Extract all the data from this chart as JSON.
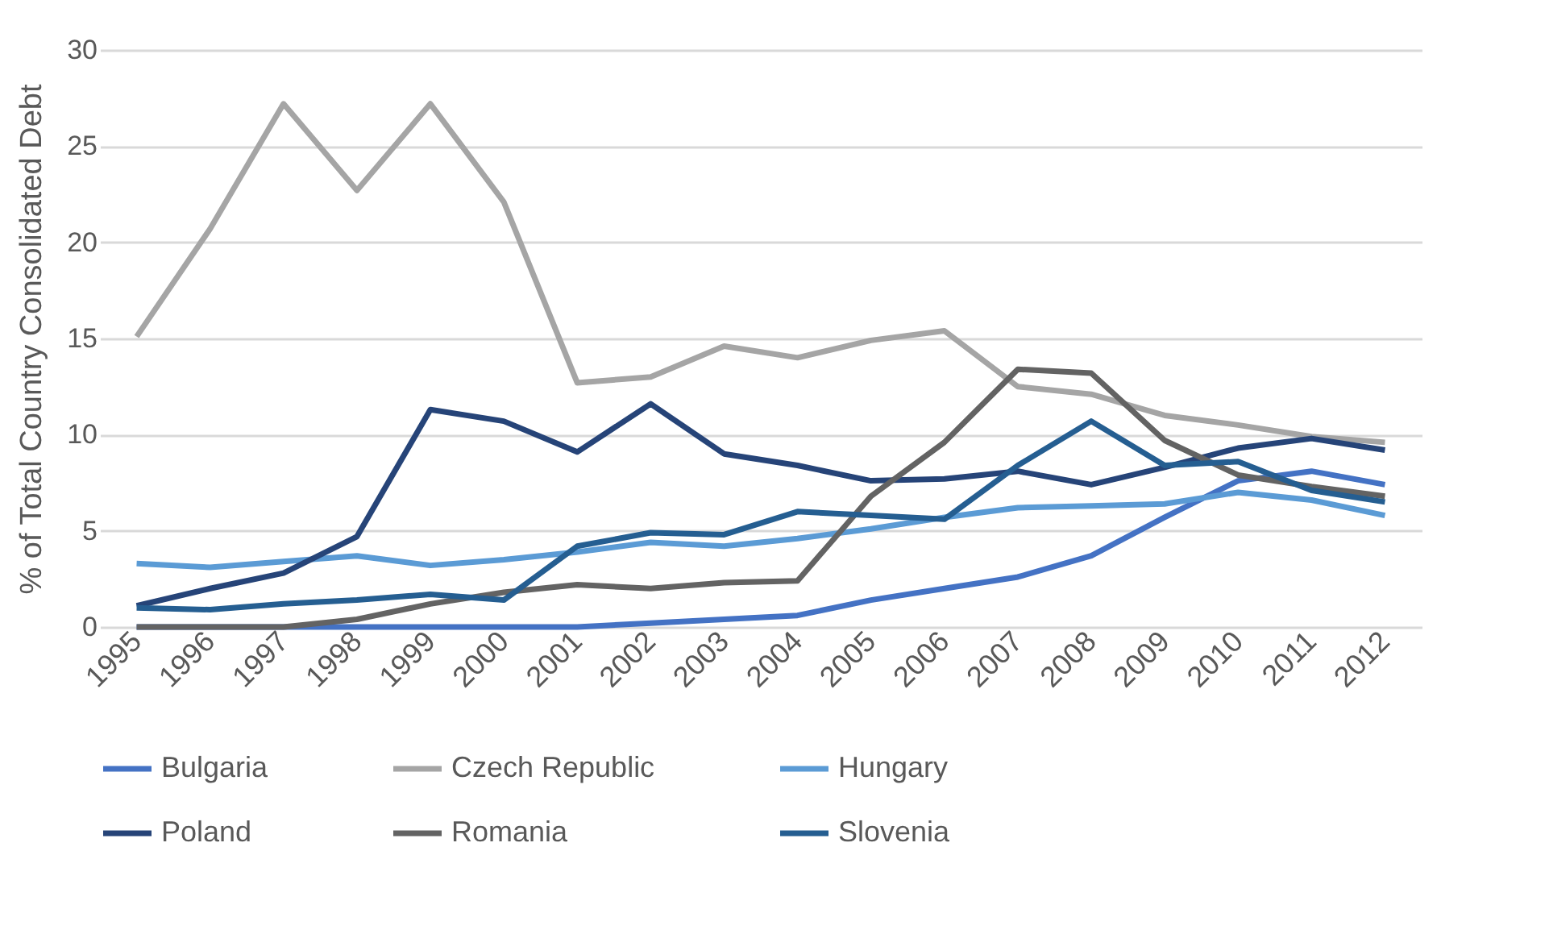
{
  "chart_data": {
    "type": "line",
    "ylabel": "% of Total Country Consolidated Debt",
    "categories": [
      "1995",
      "1996",
      "1997",
      "1998",
      "1999",
      "2000",
      "2001",
      "2002",
      "2003",
      "2004",
      "2005",
      "2006",
      "2007",
      "2008",
      "2009",
      "2010",
      "2011",
      "2012"
    ],
    "ylim": [
      0,
      30
    ],
    "yticks": [
      0,
      5,
      10,
      15,
      20,
      25,
      30
    ],
    "grid": "y",
    "legend": "bottom",
    "series": [
      {
        "name": "Bulgaria",
        "color": "#4472c4",
        "values": [
          0,
          0,
          0,
          0,
          0,
          0,
          0,
          0.2,
          0.4,
          0.6,
          1.4,
          2.0,
          2.6,
          3.7,
          5.7,
          7.6,
          8.1,
          7.4
        ]
      },
      {
        "name": "Czech Republic",
        "color": "#a5a5a5",
        "values": [
          15.1,
          20.7,
          27.2,
          22.7,
          27.2,
          22.1,
          12.7,
          13.0,
          14.6,
          14.0,
          14.9,
          15.4,
          12.5,
          12.1,
          11.0,
          10.5,
          9.9,
          9.6
        ]
      },
      {
        "name": "Hungary",
        "color": "#5b9bd5",
        "values": [
          3.3,
          3.1,
          3.4,
          3.7,
          3.2,
          3.5,
          3.9,
          4.4,
          4.2,
          4.6,
          5.1,
          5.7,
          6.2,
          6.3,
          6.4,
          7.0,
          6.6,
          5.8
        ]
      },
      {
        "name": "Poland",
        "color": "#264478",
        "values": [
          1.1,
          2.0,
          2.8,
          4.7,
          11.3,
          10.7,
          9.1,
          11.6,
          9.0,
          8.4,
          7.6,
          7.7,
          8.1,
          7.4,
          8.3,
          9.3,
          9.8,
          9.2
        ]
      },
      {
        "name": "Romania",
        "color": "#636363",
        "values": [
          0,
          0,
          0,
          0.4,
          1.2,
          1.8,
          2.2,
          2.0,
          2.3,
          2.4,
          6.8,
          9.6,
          13.4,
          13.2,
          9.7,
          7.9,
          7.3,
          6.8
        ]
      },
      {
        "name": "Slovenia",
        "color": "#255e91",
        "values": [
          1.0,
          0.9,
          1.2,
          1.4,
          1.7,
          1.4,
          4.2,
          4.9,
          4.8,
          6.0,
          5.8,
          5.6,
          8.4,
          10.7,
          8.4,
          8.6,
          7.1,
          6.5
        ]
      }
    ]
  }
}
